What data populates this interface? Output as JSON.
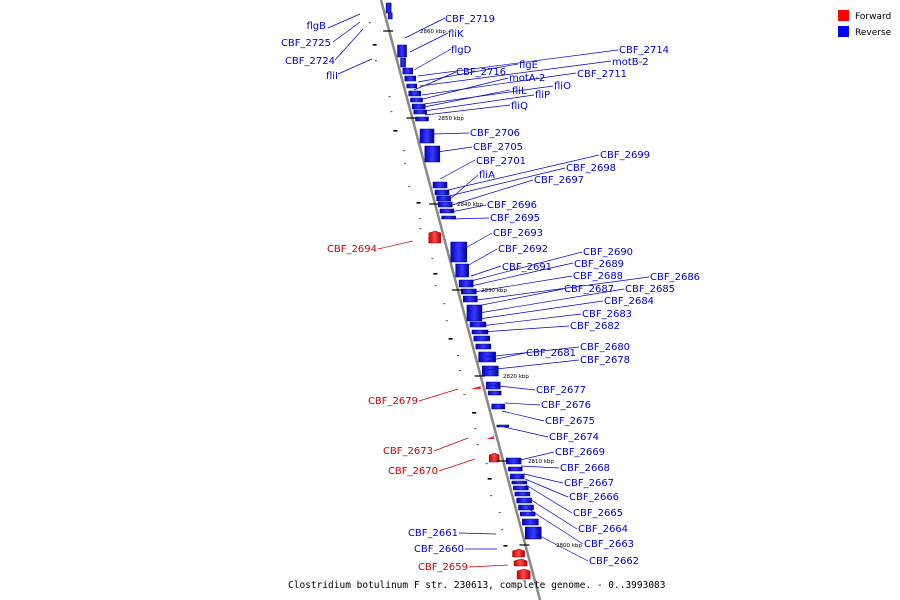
{
  "legend": {
    "forward_label": "Forward",
    "reverse_label": "Reverse",
    "forward_color": "#ff0000",
    "reverse_color": "#0000ff"
  },
  "caption": "Clostridium botulinum F str. 230613, complete genome. - 0..3993083",
  "scale_labels": [
    "2860 kbp",
    "2850 kbp",
    "2840 kbp",
    "2830 kbp",
    "2820 kbp",
    "2810 kbp",
    "2800 kbp"
  ],
  "genes_left_reverse": [
    "flgB",
    "CBF_2725",
    "CBF_2724",
    "fliI",
    "CBF_2661",
    "CBF_2660"
  ],
  "genes_forward": [
    "CBF_2694",
    "CBF_2679",
    "CBF_2673",
    "CBF_2670",
    "CBF_2659"
  ],
  "genes_right": [
    "CBF_2719",
    "fliK",
    "flgD",
    "CBF_2714",
    "flgE",
    "motB-2",
    "CBF_2716",
    "CBF_2711",
    "motA-2",
    "fliO",
    "fliL",
    "fliP",
    "fliQ",
    "CBF_2706",
    "CBF_2705",
    "CBF_2701",
    "CBF_2699",
    "CBF_2698",
    "fliA",
    "CBF_2697",
    "CBF_2696",
    "CBF_2695",
    "CBF_2693",
    "CBF_2692",
    "CBF_2690",
    "CBF_2689",
    "CBF_2691",
    "CBF_2688",
    "CBF_2686",
    "CBF_2687",
    "CBF_2685",
    "CBF_2684",
    "CBF_2683",
    "CBF_2682",
    "CBF_2680",
    "CBF_2681",
    "CBF_2678",
    "CBF_2677",
    "CBF_2676",
    "CBF_2675",
    "CBF_2674",
    "CBF_2669",
    "CBF_2668",
    "CBF_2667",
    "CBF_2666",
    "CBF_2665",
    "CBF_2664",
    "CBF_2663",
    "CBF_2662"
  ]
}
